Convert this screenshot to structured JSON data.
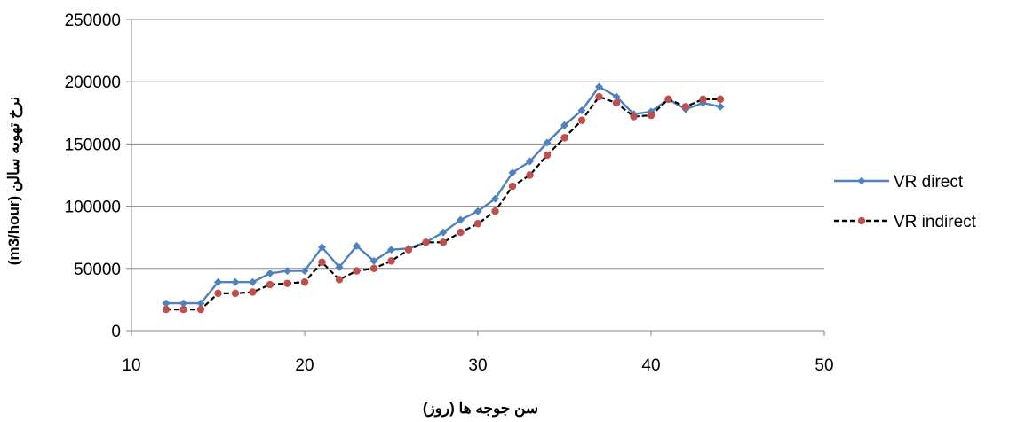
{
  "chart_data": {
    "type": "line",
    "x": [
      12,
      13,
      14,
      15,
      16,
      17,
      18,
      19,
      20,
      21,
      22,
      23,
      24,
      25,
      26,
      27,
      28,
      29,
      30,
      31,
      32,
      33,
      34,
      35,
      36,
      37,
      38,
      39,
      40,
      41,
      42,
      43,
      44
    ],
    "series": [
      {
        "name": "VR direct",
        "color": "#4F81BD",
        "line_style": "solid",
        "marker": "diamond",
        "values": [
          22000,
          22000,
          22000,
          39000,
          39000,
          39000,
          46000,
          48000,
          48000,
          67000,
          51000,
          68000,
          56000,
          65000,
          66000,
          71000,
          79000,
          89000,
          96000,
          106000,
          127000,
          136000,
          151000,
          165000,
          177000,
          196000,
          188000,
          174000,
          176000,
          186000,
          178000,
          183000,
          180000
        ]
      },
      {
        "name": "VR indirect",
        "color": "#000000",
        "marker_color": "#C0504D",
        "line_style": "dashed",
        "marker": "circle",
        "values": [
          17000,
          17000,
          17000,
          30000,
          30000,
          31000,
          37000,
          38000,
          39000,
          55000,
          41000,
          48000,
          50000,
          56000,
          65000,
          71000,
          71000,
          79000,
          86000,
          96000,
          116000,
          125000,
          141000,
          155000,
          169000,
          188000,
          183000,
          172000,
          173000,
          186000,
          180000,
          186000,
          186000
        ]
      }
    ],
    "xlim": [
      10,
      50
    ],
    "ylim": [
      0,
      250000
    ],
    "x_ticks": [
      "10",
      "20",
      "30",
      "40",
      "50"
    ],
    "y_ticks": [
      "0",
      "50000",
      "100000",
      "150000",
      "200000",
      "250000"
    ],
    "xlabel": "سن جوجه ها (روز)",
    "ylabel": "نرخ تهویه سالن (m3/hour)",
    "grid": "horizontal",
    "legend_position": "right"
  }
}
